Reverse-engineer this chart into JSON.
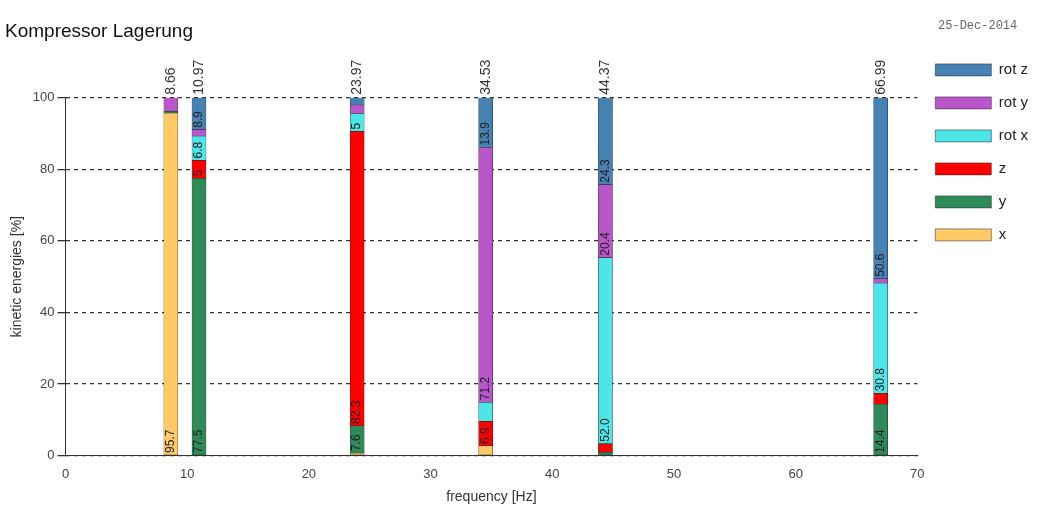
{
  "chart_data": {
    "type": "bar",
    "title": "Kompressor Lagerung",
    "xlabel": "frequency [Hz]",
    "ylabel": "kinetic energies [%]",
    "legend_title": "25-Dec-2014",
    "x": [
      8.66,
      10.97,
      23.97,
      34.53,
      44.37,
      66.99
    ],
    "stacked": true,
    "series": [
      {
        "name": "x",
        "color": "#ffc966",
        "values": [
          95.7,
          0,
          0.7,
          2.7,
          0,
          0
        ],
        "value_labels": [
          "95.7",
          null,
          null,
          null,
          null,
          null
        ]
      },
      {
        "name": "y",
        "color": "#2e8b57",
        "values": [
          0.5,
          77.5,
          7.6,
          0,
          0.9,
          14.4
        ],
        "value_labels": [
          null,
          "77.5",
          "7.6",
          null,
          null,
          "14.4"
        ]
      },
      {
        "name": "z",
        "color": "#ff0000",
        "values": [
          0,
          5,
          82.3,
          6.9,
          2.4,
          3
        ],
        "value_labels": [
          null,
          "5",
          "82.3",
          "6.9",
          null,
          null
        ]
      },
      {
        "name": "rot x",
        "color": "#4de6e6",
        "values": [
          0,
          6.8,
          5,
          5.3,
          52.0,
          30.8
        ],
        "value_labels": [
          null,
          "6.8",
          "5",
          null,
          "52.0",
          "30.8"
        ]
      },
      {
        "name": "rot y",
        "color": "#bb55cc",
        "values": [
          3.8,
          1.8,
          2.4,
          71.2,
          20.4,
          1.2
        ],
        "value_labels": [
          null,
          null,
          null,
          "71.2",
          "20.4",
          null
        ]
      },
      {
        "name": "rot z",
        "color": "#4682b4",
        "values": [
          0,
          8.9,
          2,
          13.9,
          24.3,
          50.6
        ],
        "value_labels": [
          null,
          "8.9",
          null,
          "13.9",
          "24.3",
          "50.6"
        ]
      }
    ],
    "annotations": [
      {
        "text": "8.66",
        "x": 8.66,
        "y": 100
      },
      {
        "text": "10.97",
        "x": 10.97,
        "y": 100
      },
      {
        "text": "23.97",
        "x": 23.97,
        "y": 100
      },
      {
        "text": "34.53",
        "x": 34.53,
        "y": 100
      },
      {
        "text": "44.37",
        "x": 44.37,
        "y": 100
      },
      {
        "text": "66.99",
        "x": 66.99,
        "y": 100
      }
    ],
    "xlim": [
      0,
      70
    ],
    "xticks": [
      0,
      10,
      20,
      30,
      40,
      50,
      60,
      70
    ],
    "ylim": [
      0,
      100
    ],
    "yticks": [
      0,
      20,
      40,
      60,
      80,
      100
    ],
    "grid": "y",
    "legend": "right"
  }
}
